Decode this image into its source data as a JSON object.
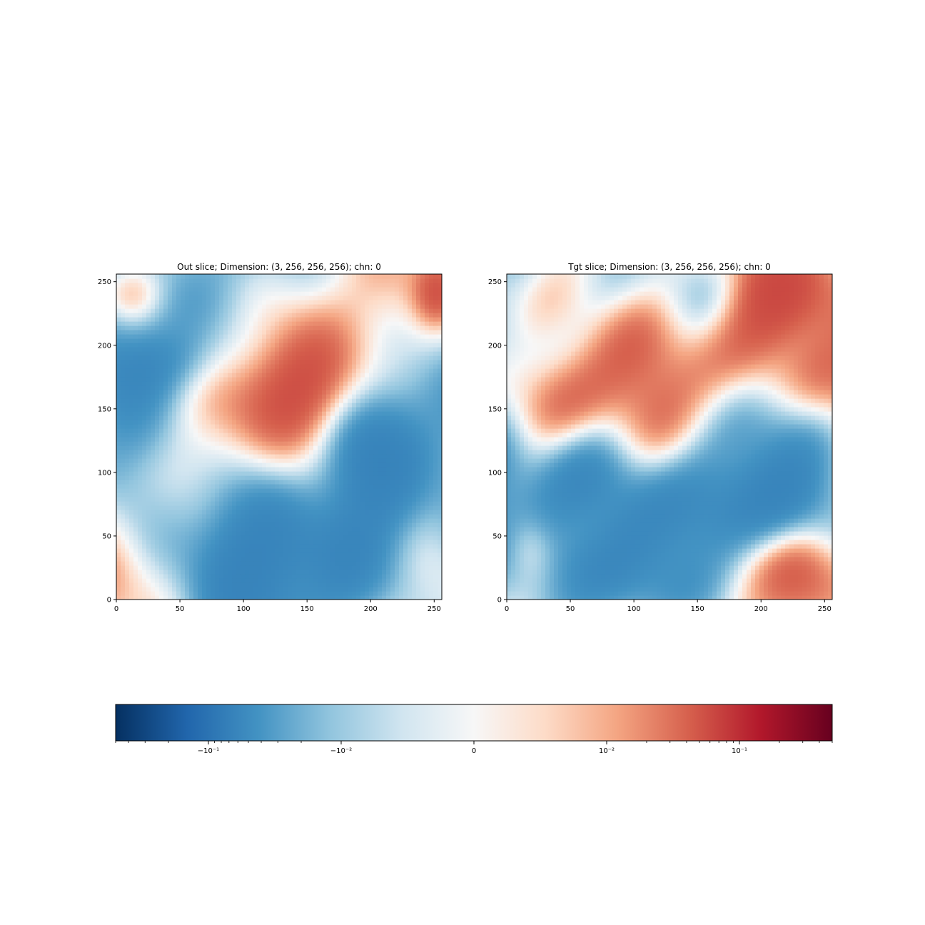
{
  "chart_data": [
    {
      "type": "heatmap",
      "title": "Out slice; Dimension: (3, 256, 256, 256); chn: 0",
      "xlim": [
        0,
        256
      ],
      "ylim": [
        0,
        256
      ],
      "x_ticks": [
        "0",
        "50",
        "100",
        "150",
        "200",
        "250"
      ],
      "y_ticks": [
        "0",
        "50",
        "100",
        "150",
        "200",
        "250"
      ],
      "x_tick_values": [
        0,
        50,
        100,
        150,
        200,
        250
      ],
      "y_tick_values": [
        0,
        50,
        100,
        150,
        200,
        250
      ],
      "colormap": "RdBu_r",
      "description_seed": 7
    },
    {
      "type": "heatmap",
      "title": "Tgt slice; Dimension: (3, 256, 256, 256); chn: 0",
      "xlim": [
        0,
        256
      ],
      "ylim": [
        0,
        256
      ],
      "x_ticks": [
        "0",
        "50",
        "100",
        "150",
        "200",
        "250"
      ],
      "y_ticks": [
        "0",
        "50",
        "100",
        "150",
        "200",
        "250"
      ],
      "x_tick_values": [
        0,
        50,
        100,
        150,
        200,
        250
      ],
      "y_tick_values": [
        0,
        50,
        100,
        150,
        200,
        250
      ],
      "colormap": "RdBu_r",
      "description_seed": 23
    }
  ],
  "colorbar": {
    "scale": "symlog",
    "orientation": "horizontal",
    "colors": [
      "#053061",
      "#2166ac",
      "#4393c3",
      "#92c5de",
      "#d1e5f0",
      "#f7f7f7",
      "#fddbc7",
      "#f4a582",
      "#d6604d",
      "#b2182b",
      "#67001f"
    ],
    "major_ticks": [
      {
        "label": "−10⁻¹",
        "value": -0.1
      },
      {
        "label": "−10⁻²",
        "value": -0.01
      },
      {
        "label": "0",
        "value": 0
      },
      {
        "label": "10⁻²",
        "value": 0.01
      },
      {
        "label": "10⁻¹",
        "value": 0.1
      }
    ]
  }
}
